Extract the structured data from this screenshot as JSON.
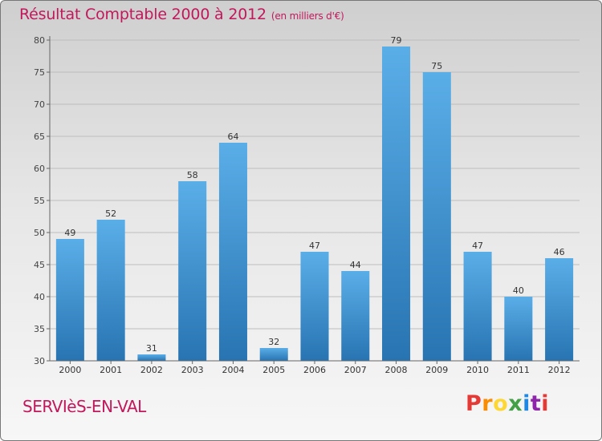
{
  "header": {
    "title": "Résultat Comptable 2000 à 2012",
    "unit": "(en milliers d'€)"
  },
  "footer": {
    "town": "SERVIèS-EN-VAL",
    "logo": "Proxiti"
  },
  "colors": {
    "title": "#c2185b",
    "bar_top": "#5aaee8",
    "bar_bottom": "#2874b2"
  },
  "chart_data": {
    "type": "bar",
    "title": "Résultat Comptable 2000 à 2012",
    "subtitle": "(en milliers d'€)",
    "xlabel": "",
    "ylabel": "",
    "categories": [
      "2000",
      "2001",
      "2002",
      "2003",
      "2004",
      "2005",
      "2006",
      "2007",
      "2008",
      "2009",
      "2010",
      "2011",
      "2012"
    ],
    "values": [
      49,
      52,
      31,
      58,
      64,
      32,
      47,
      44,
      79,
      75,
      47,
      40,
      46
    ],
    "ylim": [
      30,
      80
    ],
    "yticks": [
      30,
      35,
      40,
      45,
      50,
      55,
      60,
      65,
      70,
      75,
      80
    ],
    "grid": "horizontal"
  }
}
